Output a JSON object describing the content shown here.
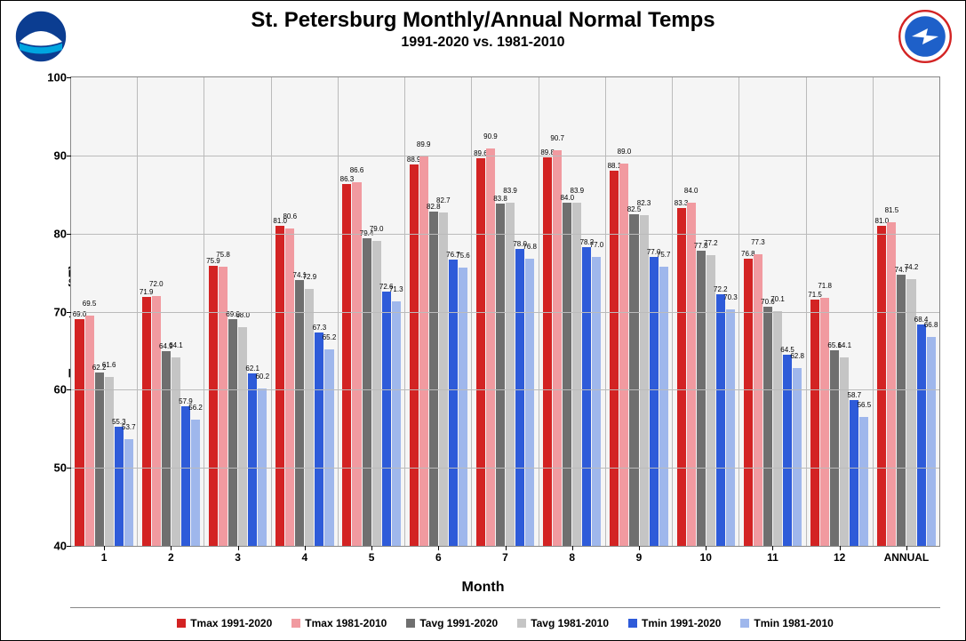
{
  "title": "St. Petersburg Monthly/Annual Normal Temps",
  "subtitle": "1991-2020 vs. 1981-2010",
  "y_axis": {
    "title": "Temperature (°F)",
    "min": 40,
    "max": 100,
    "ticks": [
      40,
      50,
      60,
      70,
      80,
      90,
      100
    ]
  },
  "x_axis": {
    "title": "Month",
    "categories": [
      "1",
      "2",
      "3",
      "4",
      "5",
      "6",
      "7",
      "8",
      "9",
      "10",
      "11",
      "12",
      "ANNUAL"
    ]
  },
  "series": [
    {
      "name": "Tmax 1991-2020",
      "color": "#d32323",
      "values": [
        69.0,
        71.9,
        75.9,
        81.0,
        86.3,
        88.9,
        89.6,
        89.8,
        88.1,
        83.3,
        76.8,
        71.5,
        81.0
      ]
    },
    {
      "name": "Tmax 1981-2010",
      "color": "#f19aa0",
      "values": [
        69.5,
        72.0,
        75.8,
        80.6,
        86.6,
        89.9,
        90.9,
        90.7,
        89.0,
        84.0,
        77.3,
        71.8,
        81.5
      ]
    },
    {
      "name": "Tavg 1991-2020",
      "color": "#6f6f6f",
      "values": [
        62.2,
        64.9,
        69.0,
        74.1,
        79.4,
        82.8,
        83.8,
        84.0,
        82.5,
        77.8,
        70.6,
        65.1,
        74.7
      ]
    },
    {
      "name": "Tavg 1981-2010",
      "color": "#c5c5c5",
      "values": [
        61.6,
        64.1,
        68.0,
        72.9,
        79.0,
        82.7,
        83.9,
        83.9,
        82.3,
        77.2,
        70.1,
        64.1,
        74.2
      ]
    },
    {
      "name": "Tmin 1991-2020",
      "color": "#2e5bd9",
      "values": [
        55.3,
        57.9,
        62.1,
        67.3,
        72.6,
        76.7,
        78.0,
        78.2,
        77.0,
        72.2,
        64.5,
        58.7,
        68.4
      ]
    },
    {
      "name": "Tmin 1981-2010",
      "color": "#9fb7ec",
      "values": [
        53.7,
        56.2,
        60.2,
        65.2,
        71.3,
        75.6,
        76.8,
        77.0,
        75.7,
        70.3,
        62.8,
        56.5,
        66.8
      ]
    }
  ],
  "plot_background": "#f5f5f5",
  "grid_color": "#bbbbbb",
  "logos": {
    "left_alt": "NOAA",
    "right_alt": "National Weather Service"
  }
}
